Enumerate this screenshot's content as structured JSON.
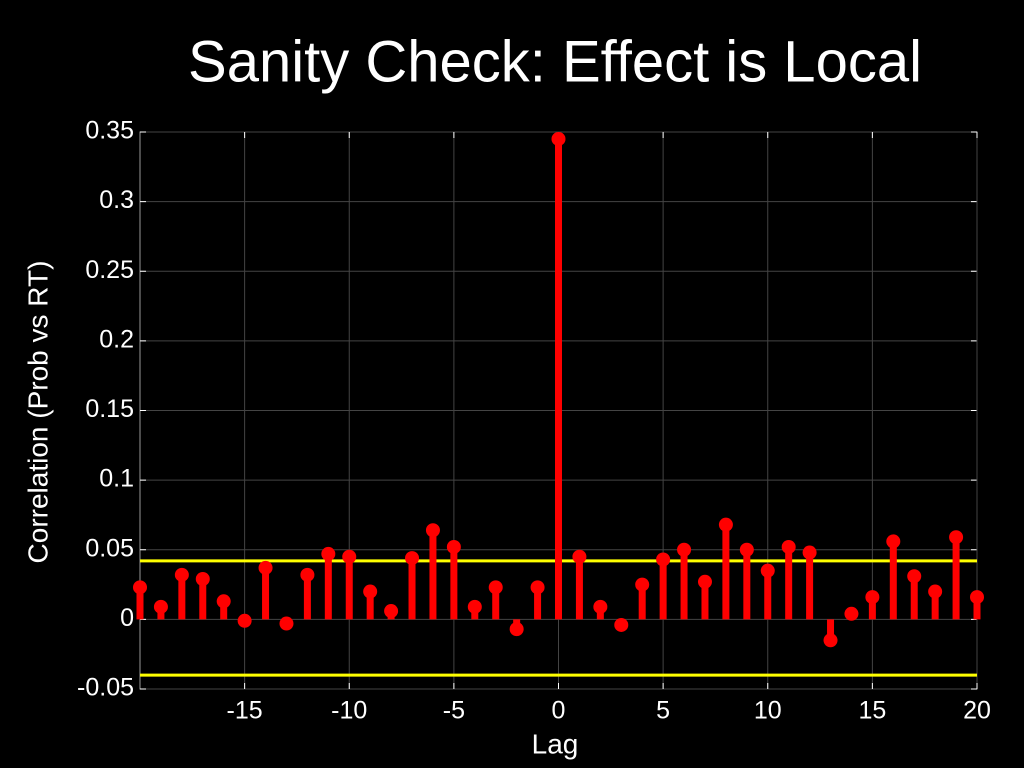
{
  "chart_data": {
    "type": "stem",
    "title": "Sanity Check: Effect is Local",
    "xlabel": "Lag",
    "ylabel": "Correlation (Prob vs RT)",
    "x": [
      -20,
      -19,
      -18,
      -17,
      -16,
      -15,
      -14,
      -13,
      -12,
      -11,
      -10,
      -9,
      -8,
      -7,
      -6,
      -5,
      -4,
      -3,
      -2,
      -1,
      0,
      1,
      2,
      3,
      4,
      5,
      6,
      7,
      8,
      9,
      10,
      11,
      12,
      13,
      14,
      15,
      16,
      17,
      18,
      19,
      20
    ],
    "series": [
      {
        "name": "Correlation",
        "color": "#ff0000",
        "values": [
          0.023,
          0.009,
          0.032,
          0.029,
          0.013,
          -0.001,
          0.037,
          -0.003,
          0.032,
          0.047,
          0.045,
          0.02,
          0.006,
          0.044,
          0.064,
          0.052,
          0.009,
          0.023,
          -0.007,
          0.023,
          0.345,
          0.045,
          0.009,
          -0.004,
          0.025,
          0.043,
          0.05,
          0.027,
          0.068,
          0.05,
          0.035,
          0.052,
          0.048,
          -0.015,
          0.004,
          0.016,
          0.056,
          0.031,
          0.02,
          0.059,
          0.016
        ]
      }
    ],
    "hlines": [
      {
        "value": 0.042,
        "color": "#ffff00"
      },
      {
        "value": -0.04,
        "color": "#ffff00"
      }
    ],
    "xlim": [
      -20,
      20
    ],
    "ylim": [
      -0.05,
      0.35
    ],
    "xticks": [
      -15,
      -10,
      -5,
      0,
      5,
      10,
      15,
      20
    ],
    "yticks": [
      -0.05,
      0,
      0.05,
      0.1,
      0.15,
      0.2,
      0.25,
      0.3,
      0.35
    ],
    "grid": true
  }
}
